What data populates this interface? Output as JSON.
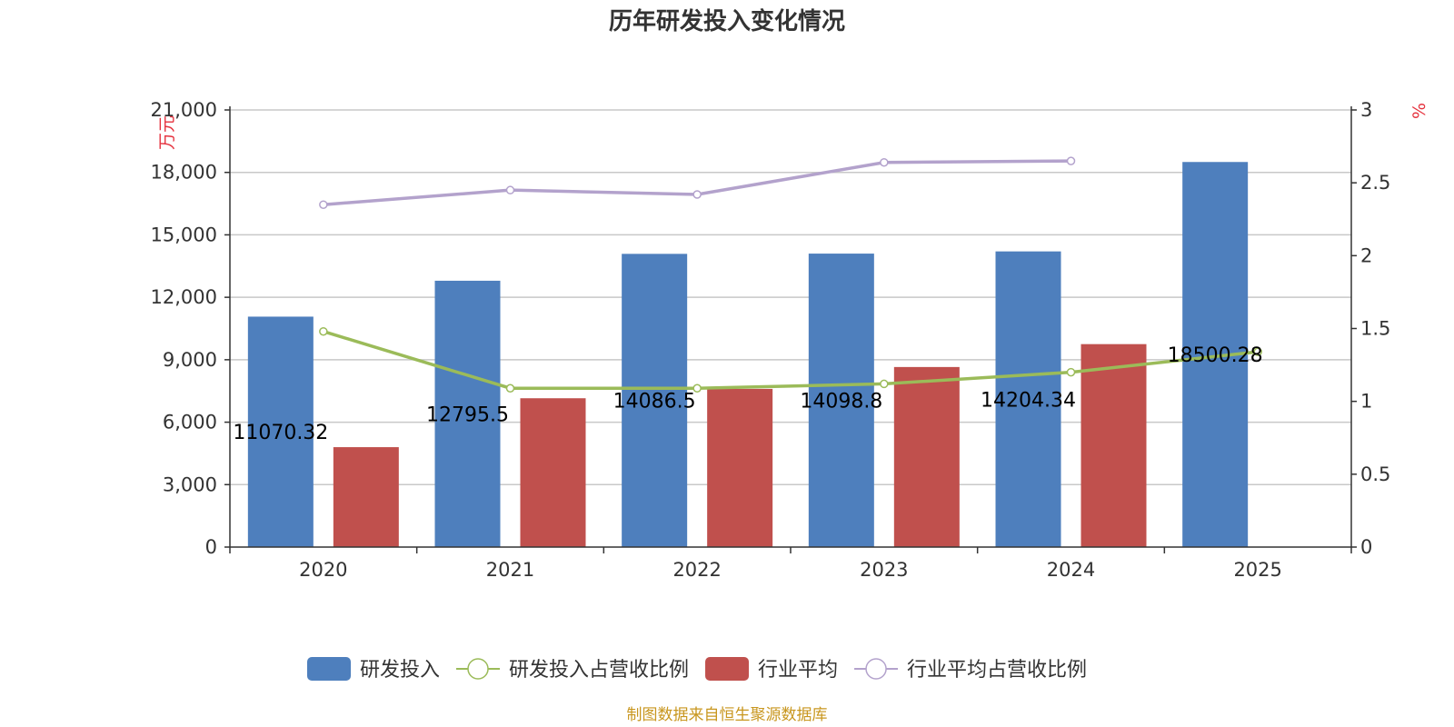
{
  "chart_data": {
    "type": "bar",
    "title": "历年研发投入变化情况",
    "categories": [
      "2020",
      "2021",
      "2022",
      "2023",
      "2024",
      "2025"
    ],
    "y_left": {
      "unit": "万元",
      "ylim": [
        0,
        21000
      ],
      "ticks": [
        "0",
        "3,000",
        "6,000",
        "9,000",
        "12,000",
        "15,000",
        "18,000",
        "21,000"
      ]
    },
    "y_right": {
      "unit": "%",
      "ylim": [
        0,
        3
      ],
      "ticks": [
        "0",
        "0.5",
        "1",
        "1.5",
        "2",
        "2.5",
        "3"
      ]
    },
    "series": [
      {
        "name": "研发投入",
        "type": "bar",
        "axis": "left",
        "color": "#4e7fbd",
        "values": [
          11070.32,
          12795.5,
          14086.5,
          14098.8,
          14204.34,
          18500.28
        ],
        "labels": [
          "11070.32",
          "12795.5",
          "14086.5",
          "14098.8",
          "14204.34",
          "18500.28"
        ]
      },
      {
        "name": "研发投入占营收比例",
        "type": "line",
        "axis": "right",
        "color": "#9bbb59",
        "values": [
          1.48,
          1.09,
          1.09,
          1.12,
          1.2,
          1.34
        ]
      },
      {
        "name": "行业平均",
        "type": "bar",
        "axis": "left",
        "color": "#c0504d",
        "values": [
          4800,
          7150,
          7600,
          8650,
          9750,
          null
        ]
      },
      {
        "name": "行业平均占营收比例",
        "type": "line",
        "axis": "right",
        "color": "#b3a2cc",
        "values": [
          2.35,
          2.45,
          2.42,
          2.64,
          2.65,
          null
        ]
      }
    ],
    "legend_position": "bottom",
    "grid": true
  },
  "footer": {
    "source": "制图数据来自恒生聚源数据库"
  }
}
